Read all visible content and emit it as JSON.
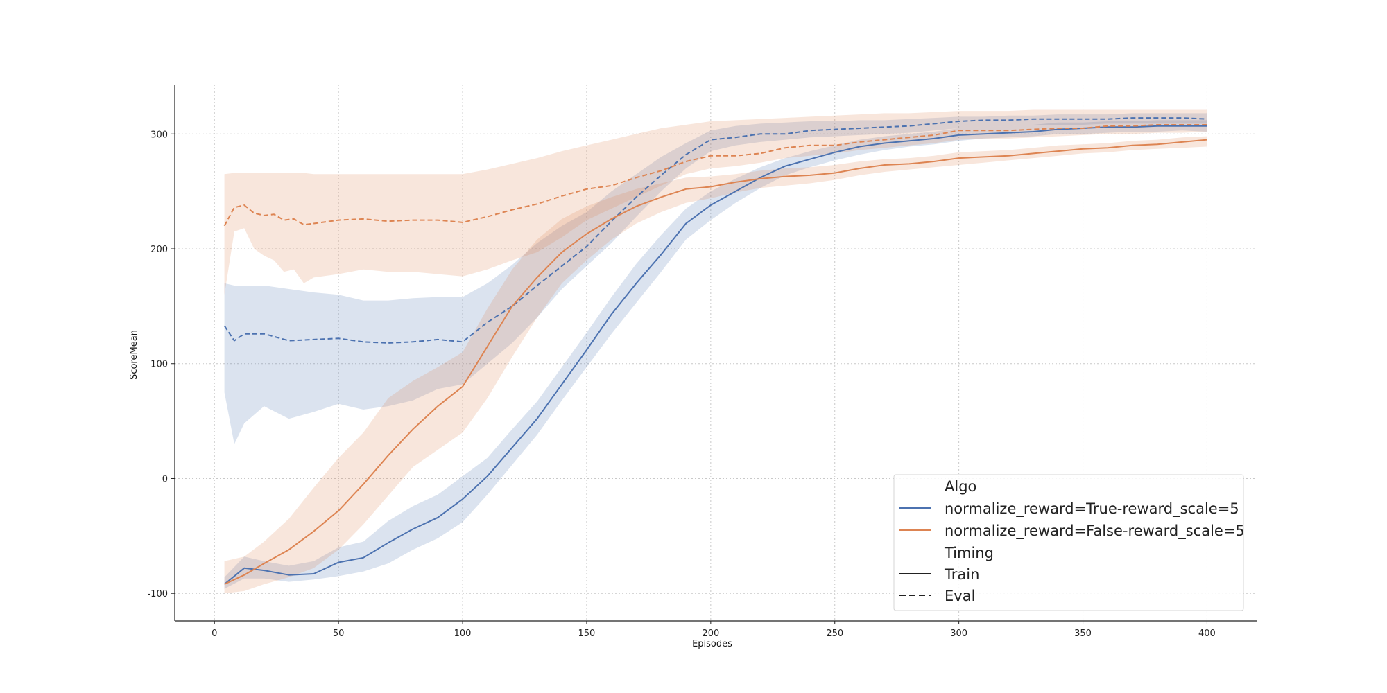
{
  "chart_data": {
    "type": "line",
    "xlabel": "Episodes",
    "ylabel": "ScoreMean",
    "xlim": [
      -16,
      420
    ],
    "ylim": [
      -124,
      343
    ],
    "xticks": [
      0,
      50,
      100,
      150,
      200,
      250,
      300,
      350,
      400
    ],
    "yticks": [
      -100,
      0,
      100,
      200,
      300
    ],
    "grid": true,
    "legend_placement": "lower-right",
    "legend": {
      "hue_title": "Algo",
      "style_title": "Timing",
      "hue_entries": [
        {
          "label": "normalize_reward=True-reward_scale=5",
          "color": "#4c72b0"
        },
        {
          "label": "normalize_reward=False-reward_scale=5",
          "color": "#dd8452"
        }
      ],
      "style_entries": [
        {
          "label": "Train",
          "dash": "solid"
        },
        {
          "label": "Eval",
          "dash": "dashed"
        }
      ]
    },
    "series": [
      {
        "name": "normalize_reward=True-reward_scale=5",
        "timing": "Train",
        "color": "#4c72b0",
        "dashed": false,
        "x": [
          4,
          12,
          20,
          30,
          40,
          50,
          60,
          70,
          80,
          90,
          100,
          110,
          120,
          130,
          140,
          150,
          160,
          170,
          180,
          190,
          200,
          210,
          220,
          230,
          240,
          250,
          260,
          270,
          280,
          290,
          300,
          310,
          320,
          330,
          340,
          350,
          360,
          370,
          380,
          390,
          400
        ],
        "y": [
          -92,
          -78,
          -80,
          -84,
          -83,
          -73,
          -69,
          -56,
          -44,
          -34,
          -18,
          2,
          27,
          52,
          82,
          112,
          143,
          170,
          195,
          222,
          238,
          250,
          262,
          272,
          278,
          284,
          289,
          292,
          294,
          296,
          299,
          300,
          301,
          302,
          304,
          305,
          306,
          306,
          307,
          307,
          307
        ],
        "lower": [
          -96,
          -87,
          -87,
          -90,
          -88,
          -85,
          -81,
          -74,
          -62,
          -52,
          -38,
          -14,
          12,
          38,
          68,
          97,
          126,
          153,
          180,
          208,
          225,
          240,
          253,
          264,
          271,
          277,
          282,
          286,
          289,
          291,
          294,
          296,
          297,
          298,
          300,
          300,
          301,
          302,
          302,
          303,
          302
        ],
        "upper": [
          -86,
          -68,
          -72,
          -76,
          -72,
          -60,
          -55,
          -37,
          -24,
          -14,
          2,
          18,
          43,
          67,
          97,
          127,
          158,
          187,
          212,
          235,
          250,
          261,
          271,
          279,
          285,
          290,
          295,
          298,
          300,
          302,
          305,
          306,
          307,
          308,
          310,
          310,
          311,
          311,
          312,
          312,
          312
        ]
      },
      {
        "name": "normalize_reward=True-reward_scale=5",
        "timing": "Eval",
        "color": "#4c72b0",
        "dashed": true,
        "x": [
          4,
          8,
          12,
          20,
          30,
          40,
          50,
          60,
          70,
          80,
          90,
          100,
          110,
          120,
          130,
          140,
          150,
          160,
          170,
          180,
          190,
          200,
          210,
          220,
          230,
          240,
          250,
          260,
          270,
          280,
          290,
          300,
          310,
          320,
          330,
          340,
          350,
          360,
          370,
          380,
          390,
          400
        ],
        "y": [
          133,
          120,
          126,
          126,
          120,
          121,
          122,
          119,
          118,
          119,
          121,
          119,
          136,
          150,
          168,
          185,
          202,
          224,
          245,
          264,
          282,
          295,
          297,
          300,
          300,
          303,
          304,
          305,
          306,
          307,
          309,
          311,
          312,
          312,
          313,
          313,
          313,
          313,
          314,
          314,
          314,
          313
        ],
        "lower": [
          75,
          30,
          48,
          63,
          52,
          58,
          65,
          60,
          63,
          68,
          78,
          82,
          100,
          118,
          140,
          165,
          185,
          205,
          228,
          250,
          270,
          285,
          290,
          293,
          295,
          297,
          298,
          299,
          300,
          301,
          303,
          305,
          306,
          307,
          308,
          308,
          308,
          309,
          309,
          309,
          309,
          309
        ],
        "upper": [
          170,
          168,
          168,
          168,
          165,
          162,
          160,
          155,
          155,
          157,
          158,
          158,
          170,
          186,
          205,
          220,
          232,
          250,
          265,
          280,
          292,
          303,
          307,
          309,
          310,
          311,
          311,
          312,
          312,
          313,
          314,
          315,
          315,
          316,
          316,
          317,
          317,
          317,
          318,
          318,
          318,
          318
        ]
      },
      {
        "name": "normalize_reward=False-reward_scale=5",
        "timing": "Train",
        "color": "#dd8452",
        "dashed": false,
        "x": [
          4,
          12,
          20,
          30,
          40,
          50,
          60,
          70,
          80,
          90,
          100,
          110,
          120,
          130,
          140,
          150,
          160,
          170,
          180,
          190,
          200,
          210,
          220,
          230,
          240,
          250,
          260,
          270,
          280,
          290,
          300,
          310,
          320,
          330,
          340,
          350,
          360,
          370,
          380,
          390,
          400
        ],
        "y": [
          -92,
          -84,
          -74,
          -62,
          -46,
          -28,
          -5,
          20,
          43,
          63,
          80,
          115,
          150,
          175,
          197,
          213,
          226,
          237,
          245,
          252,
          254,
          258,
          261,
          263,
          264,
          266,
          270,
          273,
          274,
          276,
          279,
          280,
          281,
          283,
          285,
          287,
          288,
          290,
          291,
          293,
          295
        ],
        "lower": [
          -100,
          -98,
          -92,
          -86,
          -78,
          -62,
          -40,
          -15,
          10,
          25,
          40,
          70,
          106,
          140,
          170,
          190,
          208,
          222,
          232,
          240,
          244,
          249,
          253,
          255,
          257,
          260,
          264,
          267,
          269,
          271,
          273,
          275,
          277,
          279,
          281,
          283,
          284,
          286,
          287,
          288,
          289
        ],
        "upper": [
          -72,
          -68,
          -55,
          -35,
          -8,
          18,
          40,
          70,
          85,
          97,
          110,
          148,
          182,
          208,
          226,
          237,
          245,
          252,
          257,
          262,
          263,
          265,
          268,
          270,
          271,
          273,
          276,
          278,
          279,
          281,
          284,
          285,
          286,
          288,
          290,
          291,
          292,
          294,
          295,
          297,
          298
        ]
      },
      {
        "name": "normalize_reward=False-reward_scale=5",
        "timing": "Eval",
        "color": "#dd8452",
        "dashed": true,
        "x": [
          4,
          8,
          12,
          16,
          20,
          24,
          28,
          32,
          36,
          40,
          50,
          60,
          70,
          80,
          90,
          100,
          110,
          120,
          130,
          140,
          150,
          160,
          170,
          180,
          190,
          200,
          210,
          220,
          230,
          240,
          250,
          260,
          270,
          280,
          290,
          300,
          310,
          320,
          330,
          340,
          350,
          360,
          370,
          380,
          390,
          400
        ],
        "y": [
          220,
          236,
          238,
          231,
          229,
          230,
          225,
          226,
          221,
          222,
          225,
          226,
          224,
          225,
          225,
          223,
          228,
          234,
          239,
          246,
          252,
          255,
          262,
          268,
          276,
          281,
          281,
          283,
          288,
          290,
          290,
          293,
          295,
          297,
          299,
          303,
          303,
          303,
          304,
          305,
          305,
          307,
          307,
          308,
          308,
          308
        ],
        "lower": [
          160,
          215,
          218,
          200,
          194,
          190,
          180,
          182,
          170,
          175,
          178,
          182,
          180,
          180,
          178,
          176,
          182,
          190,
          197,
          210,
          225,
          235,
          245,
          255,
          265,
          270,
          272,
          275,
          279,
          281,
          283,
          286,
          288,
          290,
          292,
          295,
          296,
          296,
          297,
          298,
          299,
          300,
          300,
          301,
          301,
          302
        ],
        "upper": [
          265,
          266,
          266,
          266,
          266,
          266,
          266,
          266,
          266,
          265,
          265,
          265,
          265,
          265,
          265,
          265,
          269,
          274,
          279,
          285,
          290,
          295,
          300,
          305,
          308,
          311,
          312,
          313,
          314,
          315,
          316,
          317,
          318,
          318,
          319,
          320,
          320,
          320,
          321,
          321,
          321,
          321,
          321,
          321,
          321,
          321
        ]
      }
    ]
  }
}
